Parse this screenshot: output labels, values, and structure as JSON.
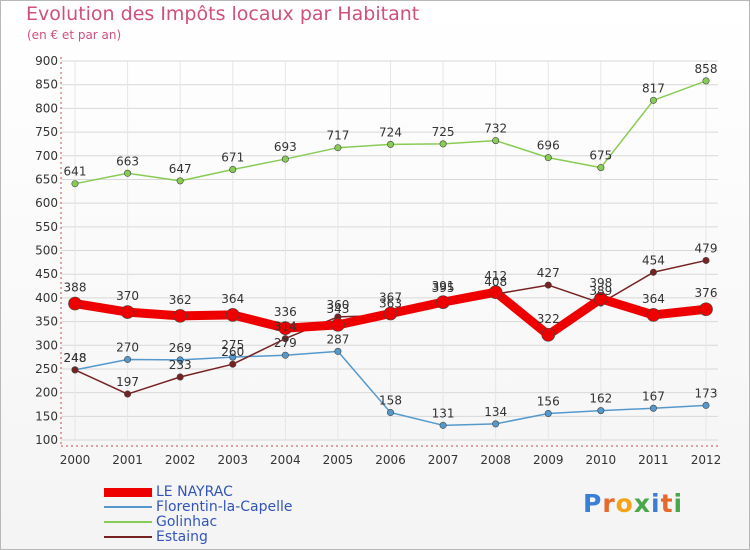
{
  "title": "Evolution des Impôts locaux par Habitant",
  "subtitle": "(en € et par an)",
  "logo": "Proxiti",
  "chart_data": {
    "type": "line",
    "title": "Evolution des Impôts locaux par Habitant",
    "ylabel": "(en € et par an)",
    "xlabel": "",
    "ylim": [
      100,
      900
    ],
    "y_ticks": [
      100,
      150,
      200,
      250,
      300,
      350,
      400,
      450,
      500,
      550,
      600,
      650,
      700,
      750,
      800,
      850,
      900
    ],
    "categories": [
      "2000",
      "2001",
      "2002",
      "2003",
      "2004",
      "2005",
      "2006",
      "2007",
      "2008",
      "2009",
      "2010",
      "2011",
      "2012"
    ],
    "grid": true,
    "legend_position": "bottom-left",
    "series": [
      {
        "name": "LE NAYRAC",
        "color": "#ee0000",
        "values": [
          388,
          370,
          362,
          364,
          336,
          343,
          367,
          391,
          412,
          322,
          398,
          364,
          376
        ]
      },
      {
        "name": "Florentin-la-Capelle",
        "color": "#5599cc",
        "values": [
          248,
          270,
          269,
          275,
          279,
          287,
          158,
          131,
          134,
          156,
          162,
          167,
          173
        ]
      },
      {
        "name": "Golinhac",
        "color": "#88cc55",
        "values": [
          641,
          663,
          647,
          671,
          693,
          717,
          724,
          725,
          732,
          696,
          675,
          817,
          858
        ]
      },
      {
        "name": "Estaing",
        "color": "#772222",
        "values": [
          248,
          197,
          233,
          260,
          314,
          360,
          363,
          395,
          408,
          427,
          389,
          454,
          479
        ]
      }
    ]
  }
}
